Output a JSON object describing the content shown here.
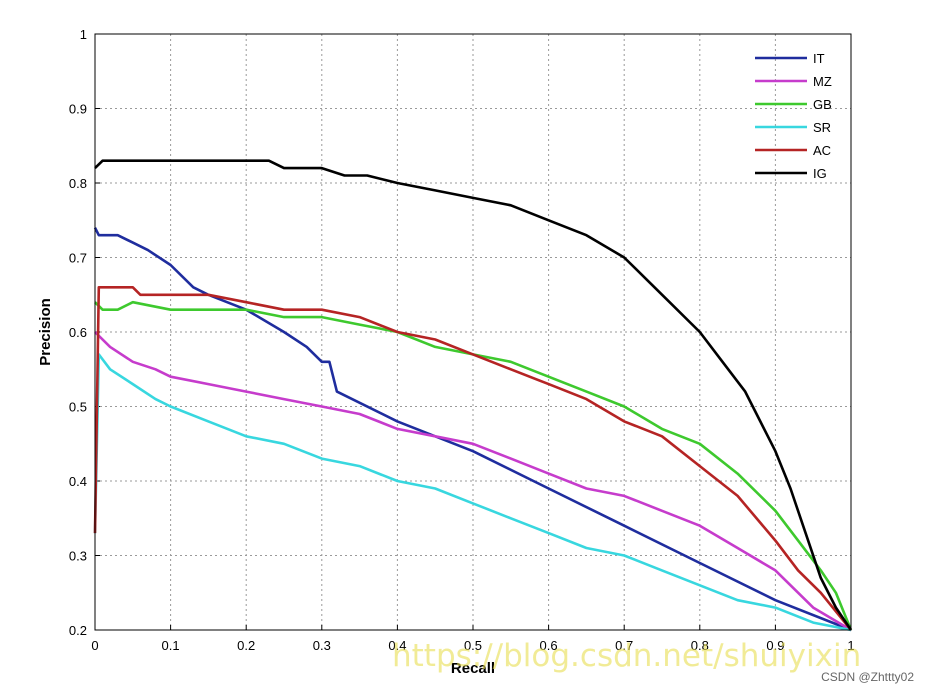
{
  "chart_data": {
    "type": "line",
    "title": "",
    "xlabel": "Recall",
    "ylabel": "Precision",
    "xlim": [
      0,
      1
    ],
    "ylim": [
      0.2,
      1
    ],
    "xticks": [
      "0",
      "0.1",
      "0.2",
      "0.3",
      "0.4",
      "0.5",
      "0.6",
      "0.7",
      "0.8",
      "0.9",
      "1"
    ],
    "yticks": [
      "0.2",
      "0.3",
      "0.4",
      "0.5",
      "0.6",
      "0.7",
      "0.8",
      "0.9",
      "1"
    ],
    "grid": true,
    "legend_position": "top-right",
    "series": [
      {
        "name": "IT",
        "color": "#1f2d9e",
        "x": [
          0,
          0.005,
          0.03,
          0.05,
          0.07,
          0.1,
          0.13,
          0.15,
          0.2,
          0.25,
          0.28,
          0.3,
          0.31,
          0.32,
          0.4,
          0.5,
          0.6,
          0.7,
          0.8,
          0.9,
          1
        ],
        "y": [
          0.74,
          0.73,
          0.73,
          0.72,
          0.71,
          0.69,
          0.66,
          0.65,
          0.63,
          0.6,
          0.58,
          0.56,
          0.56,
          0.52,
          0.48,
          0.44,
          0.39,
          0.34,
          0.29,
          0.24,
          0.2
        ]
      },
      {
        "name": "MZ",
        "color": "#c63ccc",
        "x": [
          0,
          0.02,
          0.05,
          0.08,
          0.1,
          0.15,
          0.2,
          0.25,
          0.3,
          0.35,
          0.4,
          0.45,
          0.5,
          0.55,
          0.6,
          0.65,
          0.7,
          0.75,
          0.8,
          0.85,
          0.9,
          0.95,
          1
        ],
        "y": [
          0.6,
          0.58,
          0.56,
          0.55,
          0.54,
          0.53,
          0.52,
          0.51,
          0.5,
          0.49,
          0.47,
          0.46,
          0.45,
          0.43,
          0.41,
          0.39,
          0.38,
          0.36,
          0.34,
          0.31,
          0.28,
          0.23,
          0.2
        ]
      },
      {
        "name": "GB",
        "color": "#3ec92e",
        "x": [
          0,
          0.01,
          0.03,
          0.05,
          0.1,
          0.15,
          0.2,
          0.25,
          0.3,
          0.35,
          0.4,
          0.45,
          0.5,
          0.55,
          0.6,
          0.65,
          0.7,
          0.75,
          0.8,
          0.85,
          0.9,
          0.93,
          0.96,
          0.98,
          1
        ],
        "y": [
          0.64,
          0.63,
          0.63,
          0.64,
          0.63,
          0.63,
          0.63,
          0.62,
          0.62,
          0.61,
          0.6,
          0.58,
          0.57,
          0.56,
          0.54,
          0.52,
          0.5,
          0.47,
          0.45,
          0.41,
          0.36,
          0.32,
          0.28,
          0.25,
          0.2
        ]
      },
      {
        "name": "SR",
        "color": "#38d7df",
        "x": [
          0,
          0.005,
          0.02,
          0.05,
          0.08,
          0.1,
          0.15,
          0.2,
          0.25,
          0.3,
          0.35,
          0.4,
          0.45,
          0.5,
          0.55,
          0.6,
          0.65,
          0.7,
          0.75,
          0.8,
          0.85,
          0.9,
          0.95,
          1
        ],
        "y": [
          0.33,
          0.57,
          0.55,
          0.53,
          0.51,
          0.5,
          0.48,
          0.46,
          0.45,
          0.43,
          0.42,
          0.4,
          0.39,
          0.37,
          0.35,
          0.33,
          0.31,
          0.3,
          0.28,
          0.26,
          0.24,
          0.23,
          0.21,
          0.2
        ]
      },
      {
        "name": "AC",
        "color": "#b52424",
        "x": [
          0,
          0.005,
          0.05,
          0.06,
          0.1,
          0.15,
          0.2,
          0.25,
          0.3,
          0.35,
          0.4,
          0.45,
          0.5,
          0.55,
          0.6,
          0.65,
          0.7,
          0.75,
          0.8,
          0.85,
          0.9,
          0.93,
          0.96,
          1
        ],
        "y": [
          0.33,
          0.66,
          0.66,
          0.65,
          0.65,
          0.65,
          0.64,
          0.63,
          0.63,
          0.62,
          0.6,
          0.59,
          0.57,
          0.55,
          0.53,
          0.51,
          0.48,
          0.46,
          0.42,
          0.38,
          0.32,
          0.28,
          0.25,
          0.2
        ]
      },
      {
        "name": "IG",
        "color": "#000000",
        "x": [
          0,
          0.01,
          0.1,
          0.2,
          0.23,
          0.25,
          0.3,
          0.33,
          0.36,
          0.4,
          0.45,
          0.5,
          0.55,
          0.6,
          0.65,
          0.7,
          0.73,
          0.76,
          0.8,
          0.83,
          0.86,
          0.88,
          0.9,
          0.92,
          0.94,
          0.96,
          0.98,
          1
        ],
        "y": [
          0.82,
          0.83,
          0.83,
          0.83,
          0.83,
          0.82,
          0.82,
          0.81,
          0.81,
          0.8,
          0.79,
          0.78,
          0.77,
          0.75,
          0.73,
          0.7,
          0.67,
          0.64,
          0.6,
          0.56,
          0.52,
          0.48,
          0.44,
          0.39,
          0.33,
          0.27,
          0.23,
          0.2
        ]
      }
    ]
  },
  "watermark": "https://blog.csdn.net/shuiyixin",
  "credit": "CSDN @Zhttty02"
}
